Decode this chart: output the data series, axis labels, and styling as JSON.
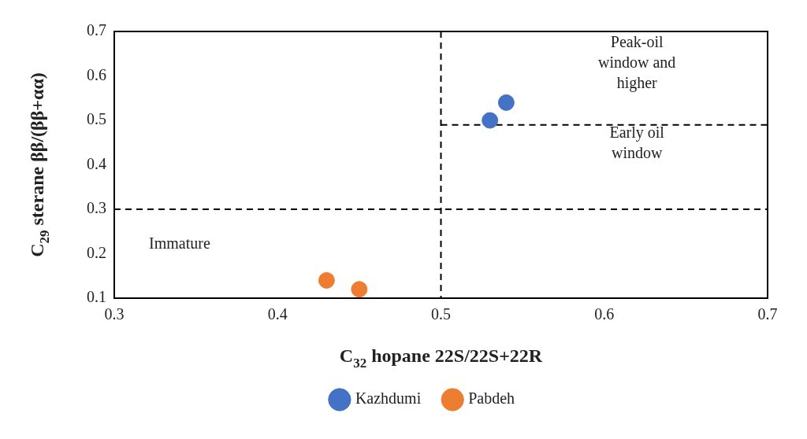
{
  "chart_data": {
    "type": "scatter",
    "xlabel": "C$_{32}$ hopane 22S/22S+22R",
    "ylabel": "C$_{29}$ sterane ββ/(ββ+αα)",
    "xlim": [
      0.3,
      0.7
    ],
    "xticks": [
      0.3,
      0.4,
      0.5,
      0.6,
      0.7
    ],
    "ylim": [
      0.1,
      0.7
    ],
    "yticks": [
      0.1,
      0.2,
      0.3,
      0.4,
      0.5,
      0.6,
      0.7
    ],
    "series": [
      {
        "name": "Kazhdumi",
        "color": "#4472c4",
        "marker": "circle",
        "x": [
          0.53,
          0.54
        ],
        "values": [
          0.5,
          0.54
        ]
      },
      {
        "name": "Pabdeh",
        "color": "#ed7d31",
        "marker": "circle",
        "x": [
          0.43,
          0.45
        ],
        "values": [
          0.14,
          0.12
        ]
      },
      {
        "type": "line",
        "color": "#000000",
        "line_style": "dashed",
        "x": [
          0.5,
          0.7
        ],
        "values": [
          0.49,
          0.49
        ]
      }
    ],
    "ref_lines": [
      {
        "axis": "x",
        "value": 0.5,
        "color": "#000000",
        "line_style": "dashed"
      },
      {
        "axis": "y",
        "value": 0.3,
        "color": "#000000",
        "line_style": "dashed"
      }
    ],
    "annotations": [
      "Peak-oil window and higher",
      "Early oil window",
      "Immature"
    ],
    "legend": "bottom",
    "grid": false
  }
}
